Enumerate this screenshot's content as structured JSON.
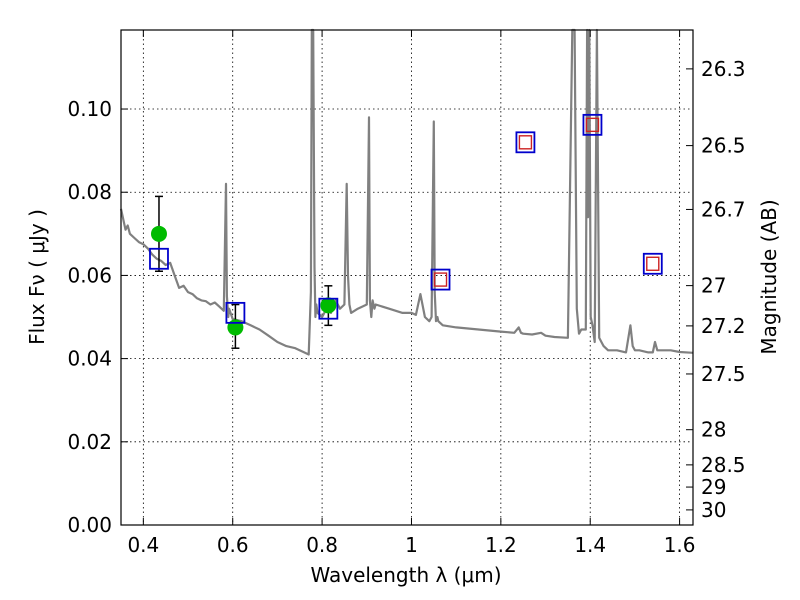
{
  "chart_data": {
    "type": "line",
    "xlabel": "Wavelength  λ (μm)",
    "ylabel": "Flux  Fν  ( μJy )",
    "y2label": "Magnitude (AB)",
    "xlim": [
      0.35,
      1.63
    ],
    "ylim": [
      0.0,
      0.119
    ],
    "grid": true,
    "x_ticks": [
      {
        "v": 0.4,
        "label": "0.4"
      },
      {
        "v": 0.6,
        "label": "0.6"
      },
      {
        "v": 0.8,
        "label": "0.8"
      },
      {
        "v": 1.0,
        "label": "1"
      },
      {
        "v": 1.2,
        "label": "1.2"
      },
      {
        "v": 1.4,
        "label": "1.4"
      },
      {
        "v": 1.6,
        "label": "1.6"
      }
    ],
    "y_ticks": [
      {
        "v": 0.0,
        "label": "0.00"
      },
      {
        "v": 0.02,
        "label": "0.02"
      },
      {
        "v": 0.04,
        "label": "0.04"
      },
      {
        "v": 0.06,
        "label": "0.06"
      },
      {
        "v": 0.08,
        "label": "0.08"
      },
      {
        "v": 0.1,
        "label": "0.10"
      }
    ],
    "y2_ticks": [
      {
        "mag": 26.3,
        "label": "26.3"
      },
      {
        "mag": 26.5,
        "label": "26.5"
      },
      {
        "mag": 26.7,
        "label": "26.7"
      },
      {
        "mag": 27.0,
        "label": "27"
      },
      {
        "mag": 27.2,
        "label": "27.2"
      },
      {
        "mag": 27.5,
        "label": "27.5"
      },
      {
        "mag": 28.0,
        "label": "28"
      },
      {
        "mag": 28.5,
        "label": "28.5"
      },
      {
        "mag": 29.0,
        "label": "29"
      },
      {
        "mag": 30.0,
        "label": "30"
      }
    ],
    "colors": {
      "model": "#808080",
      "observed": "#00bb00",
      "model_band_box": "#0000cc",
      "model_band_ir": "#cc2222",
      "errorbar": "#000000"
    },
    "model_spectrum": {
      "x": [
        0.35,
        0.36,
        0.365,
        0.37,
        0.38,
        0.39,
        0.4,
        0.41,
        0.42,
        0.43,
        0.44,
        0.45,
        0.46,
        0.47,
        0.48,
        0.49,
        0.5,
        0.51,
        0.52,
        0.53,
        0.54,
        0.55,
        0.56,
        0.57,
        0.58,
        0.585,
        0.587,
        0.59,
        0.592,
        0.6,
        0.62,
        0.64,
        0.66,
        0.68,
        0.7,
        0.72,
        0.74,
        0.76,
        0.77,
        0.775,
        0.777,
        0.78,
        0.783,
        0.785,
        0.787,
        0.79,
        0.8,
        0.81,
        0.82,
        0.83,
        0.84,
        0.85,
        0.855,
        0.858,
        0.861,
        0.865,
        0.88,
        0.9,
        0.905,
        0.907,
        0.91,
        0.913,
        0.917,
        0.92,
        0.95,
        0.98,
        1.0,
        1.01,
        1.02,
        1.03,
        1.04,
        1.045,
        1.05,
        1.052,
        1.055,
        1.058,
        1.06,
        1.07,
        1.1,
        1.15,
        1.2,
        1.23,
        1.24,
        1.245,
        1.25,
        1.27,
        1.29,
        1.3,
        1.32,
        1.35,
        1.36,
        1.365,
        1.37,
        1.375,
        1.38,
        1.385,
        1.39,
        1.393,
        1.395,
        1.398,
        1.401,
        1.405,
        1.41,
        1.415,
        1.42,
        1.425,
        1.43,
        1.44,
        1.46,
        1.48,
        1.49,
        1.495,
        1.5,
        1.51,
        1.53,
        1.54,
        1.545,
        1.55,
        1.58,
        1.6,
        1.63
      ],
      "y": [
        0.076,
        0.071,
        0.072,
        0.07,
        0.069,
        0.068,
        0.0675,
        0.0665,
        0.065,
        0.064,
        0.0635,
        0.0625,
        0.063,
        0.06,
        0.057,
        0.0575,
        0.056,
        0.0555,
        0.0545,
        0.054,
        0.0538,
        0.053,
        0.0535,
        0.0525,
        0.0515,
        0.082,
        0.055,
        0.05,
        0.052,
        0.0495,
        0.049,
        0.048,
        0.047,
        0.0455,
        0.044,
        0.043,
        0.0425,
        0.0415,
        0.041,
        0.056,
        0.119,
        0.119,
        0.062,
        0.05,
        0.053,
        0.051,
        0.05,
        0.052,
        0.051,
        0.054,
        0.052,
        0.053,
        0.082,
        0.06,
        0.053,
        0.051,
        0.052,
        0.053,
        0.098,
        0.054,
        0.05,
        0.054,
        0.052,
        0.053,
        0.052,
        0.051,
        0.051,
        0.0505,
        0.0555,
        0.05,
        0.049,
        0.05,
        0.097,
        0.056,
        0.049,
        0.05,
        0.049,
        0.048,
        0.0475,
        0.047,
        0.0465,
        0.0462,
        0.0475,
        0.0462,
        0.046,
        0.0458,
        0.0462,
        0.0455,
        0.0452,
        0.045,
        0.119,
        0.119,
        0.052,
        0.046,
        0.047,
        0.047,
        0.047,
        0.119,
        0.074,
        0.119,
        0.05,
        0.048,
        0.044,
        0.119,
        0.045,
        0.044,
        0.043,
        0.042,
        0.042,
        0.0415,
        0.048,
        0.043,
        0.042,
        0.042,
        0.0415,
        0.0415,
        0.044,
        0.042,
        0.042,
        0.0416,
        0.0414
      ]
    },
    "observed": [
      {
        "x": 0.435,
        "y": 0.07,
        "err_lo": 0.061,
        "err_hi": 0.079
      },
      {
        "x": 0.606,
        "y": 0.0475,
        "err_lo": 0.0425,
        "err_hi": 0.053
      },
      {
        "x": 0.814,
        "y": 0.0528,
        "err_lo": 0.048,
        "err_hi": 0.0575
      }
    ],
    "model_bands": [
      {
        "x": 0.435,
        "y": 0.064,
        "inner": false
      },
      {
        "x": 0.606,
        "y": 0.051,
        "inner": false
      },
      {
        "x": 0.814,
        "y": 0.052,
        "inner": false
      },
      {
        "x": 1.065,
        "y": 0.059,
        "inner": true
      },
      {
        "x": 1.255,
        "y": 0.092,
        "inner": true
      },
      {
        "x": 1.405,
        "y": 0.0962,
        "inner": true
      },
      {
        "x": 1.54,
        "y": 0.0628,
        "inner": true
      }
    ]
  }
}
